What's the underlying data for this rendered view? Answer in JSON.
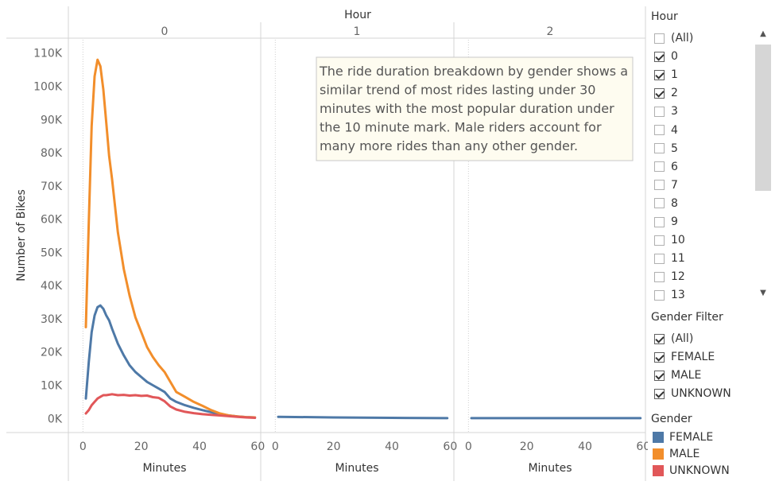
{
  "chart_data": {
    "type": "line",
    "column_header_title": "Hour",
    "panels": [
      "0",
      "1",
      "2"
    ],
    "xlabel": "Minutes",
    "ylabel": "Number of Bikes",
    "xlim": [
      -5,
      61
    ],
    "ylim": [
      -4000,
      114000
    ],
    "x_ticks": [
      0,
      20,
      40,
      60
    ],
    "x_tick_labels": [
      "0",
      "20",
      "40",
      "60"
    ],
    "y_ticks": [
      0,
      10000,
      20000,
      30000,
      40000,
      50000,
      60000,
      70000,
      80000,
      90000,
      100000,
      110000
    ],
    "y_tick_labels": [
      "0K",
      "10K",
      "20K",
      "30K",
      "40K",
      "50K",
      "60K",
      "70K",
      "80K",
      "90K",
      "100K",
      "110K"
    ],
    "series": [
      {
        "name": "FEMALE",
        "color": "#4e79a7",
        "panel_data": [
          {
            "x": [
              1,
              2,
              3,
              4,
              5,
              6,
              7,
              8,
              9,
              10,
              12,
              14,
              16,
              18,
              20,
              22,
              24,
              26,
              28,
              30,
              32,
              35,
              38,
              41,
              44,
              47,
              50,
              53,
              56,
              59
            ],
            "y": [
              6000,
              17000,
              26000,
              31000,
              33500,
              34000,
              33000,
              31000,
              29500,
              27000,
              22500,
              19000,
              16000,
              14000,
              12500,
              11000,
              10000,
              9000,
              8000,
              6000,
              5000,
              4000,
              3200,
              2500,
              1900,
              1300,
              900,
              600,
              400,
              300
            ]
          },
          {
            "x": [
              1,
              20,
              40,
              59
            ],
            "y": [
              500,
              300,
              200,
              100
            ]
          },
          {
            "x": [
              1,
              20,
              40,
              59
            ],
            "y": [
              100,
              100,
              100,
              100
            ]
          }
        ]
      },
      {
        "name": "MALE",
        "color": "#f28e2b",
        "panel_data": [
          {
            "x": [
              1,
              2,
              3,
              4,
              5,
              6,
              7,
              8,
              9,
              10,
              12,
              14,
              16,
              18,
              20,
              22,
              24,
              26,
              28,
              30,
              32,
              35,
              38,
              41,
              44,
              47,
              50,
              53,
              56,
              59
            ],
            "y": [
              27500,
              59000,
              88000,
              103000,
              108000,
              106000,
              99000,
              89000,
              79000,
              72000,
              56000,
              45000,
              37000,
              30500,
              26000,
              21500,
              18500,
              16000,
              14000,
              11000,
              8000,
              6500,
              5000,
              3800,
              2500,
              1500,
              900,
              600,
              400,
              300
            ]
          }
        ]
      },
      {
        "name": "UNKNOWN",
        "color": "#e15759",
        "panel_data": [
          {
            "x": [
              1,
              2,
              3,
              4,
              5,
              6,
              7,
              8,
              10,
              12,
              14,
              16,
              18,
              20,
              22,
              24,
              26,
              28,
              30,
              32,
              35,
              38,
              41,
              44,
              47,
              50,
              53,
              56,
              59
            ],
            "y": [
              1500,
              2500,
              4000,
              5000,
              6000,
              6500,
              7000,
              7000,
              7300,
              7000,
              7100,
              6900,
              7000,
              6800,
              6900,
              6400,
              6200,
              5200,
              3600,
              2700,
              2000,
              1600,
              1300,
              1100,
              900,
              700,
              500,
              300,
              200
            ]
          }
        ]
      }
    ],
    "annotation": "The ride duration breakdown by gender shows a similar trend of most rides lasting under 30 minutes with the most popular duration under the 10 minute mark. Male riders account for many more rides than any other gender.",
    "legend_position": "right"
  },
  "filters": {
    "hour": {
      "title": "Hour",
      "items": [
        {
          "label": "(All)",
          "checked": false
        },
        {
          "label": "0",
          "checked": true
        },
        {
          "label": "1",
          "checked": true
        },
        {
          "label": "2",
          "checked": true
        },
        {
          "label": "3",
          "checked": false
        },
        {
          "label": "4",
          "checked": false
        },
        {
          "label": "5",
          "checked": false
        },
        {
          "label": "6",
          "checked": false
        },
        {
          "label": "7",
          "checked": false
        },
        {
          "label": "8",
          "checked": false
        },
        {
          "label": "9",
          "checked": false
        },
        {
          "label": "10",
          "checked": false
        },
        {
          "label": "11",
          "checked": false
        },
        {
          "label": "12",
          "checked": false
        },
        {
          "label": "13",
          "checked": false
        }
      ],
      "scroll_up_icon": "▲",
      "scroll_down_icon": "▼"
    },
    "gender_filter": {
      "title": "Gender Filter",
      "items": [
        {
          "label": "(All)",
          "checked": true
        },
        {
          "label": "FEMALE",
          "checked": true
        },
        {
          "label": "MALE",
          "checked": true
        },
        {
          "label": "UNKNOWN",
          "checked": true
        }
      ]
    }
  },
  "legend": {
    "title": "Gender",
    "items": [
      {
        "label": "FEMALE",
        "color": "#4e79a7"
      },
      {
        "label": "MALE",
        "color": "#f28e2b"
      },
      {
        "label": "UNKNOWN",
        "color": "#e15759"
      }
    ]
  }
}
